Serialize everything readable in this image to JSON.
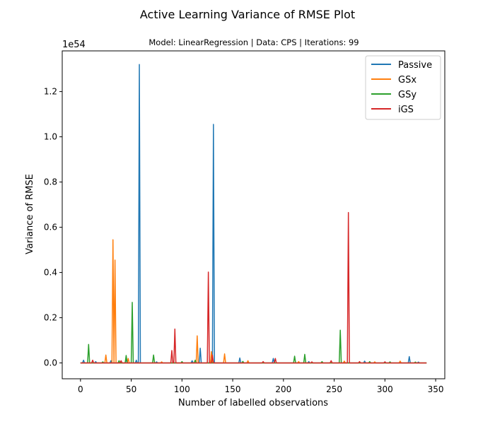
{
  "chart_data": {
    "type": "line",
    "title": "Active Learning Variance of RMSE Plot",
    "subtitle": "Model: LinearRegression |   Data: CPS    |   Iterations: 99",
    "xlabel": "Number of labelled observations",
    "ylabel": "Variance of RMSE",
    "y_exponent_label": "1e54",
    "xlim": [
      -18,
      359
    ],
    "ylim": [
      -0.07,
      1.38
    ],
    "x_ticks": [
      0,
      50,
      100,
      150,
      200,
      250,
      300,
      350
    ],
    "y_ticks": [
      0.0,
      0.2,
      0.4,
      0.6,
      0.8,
      1.0,
      1.2
    ],
    "y_tick_labels": [
      "0.0",
      "0.2",
      "0.4",
      "0.6",
      "0.8",
      "1.0",
      "1.2"
    ],
    "legend_position": "top-right",
    "grid": false,
    "x_range": [
      0,
      341
    ],
    "series": [
      {
        "name": "Passive",
        "color": "#1f77b4",
        "peaks": [
          [
            3,
            0.012
          ],
          [
            15,
            0.006
          ],
          [
            30,
            0.01
          ],
          [
            45,
            0.016
          ],
          [
            55,
            0.012
          ],
          [
            58,
            1.32
          ],
          [
            75,
            0.005
          ],
          [
            110,
            0.01
          ],
          [
            118,
            0.065
          ],
          [
            131,
            1.055
          ],
          [
            157,
            0.022
          ],
          [
            190,
            0.02
          ],
          [
            225,
            0.006
          ],
          [
            280,
            0.008
          ],
          [
            300,
            0.005
          ],
          [
            324,
            0.028
          ],
          [
            333,
            0.004
          ]
        ]
      },
      {
        "name": "GSx",
        "color": "#ff7f0e",
        "peaks": [
          [
            25,
            0.035
          ],
          [
            32,
            0.545
          ],
          [
            34,
            0.455
          ],
          [
            47,
            0.02
          ],
          [
            80,
            0.005
          ],
          [
            115,
            0.12
          ],
          [
            129,
            0.05
          ],
          [
            142,
            0.04
          ],
          [
            165,
            0.01
          ],
          [
            215,
            0.006
          ],
          [
            260,
            0.008
          ],
          [
            290,
            0.005
          ],
          [
            315,
            0.008
          ]
        ]
      },
      {
        "name": "GSy",
        "color": "#2ca02c",
        "peaks": [
          [
            8,
            0.082
          ],
          [
            22,
            0.005
          ],
          [
            38,
            0.01
          ],
          [
            45,
            0.033
          ],
          [
            51,
            0.268
          ],
          [
            72,
            0.035
          ],
          [
            100,
            0.006
          ],
          [
            113,
            0.012
          ],
          [
            160,
            0.007
          ],
          [
            211,
            0.03
          ],
          [
            221,
            0.038
          ],
          [
            238,
            0.006
          ],
          [
            256,
            0.145
          ],
          [
            285,
            0.006
          ],
          [
            305,
            0.005
          ],
          [
            330,
            0.004
          ]
        ]
      },
      {
        "name": "iGS",
        "color": "#d62728",
        "peaks": [
          [
            12,
            0.012
          ],
          [
            40,
            0.01
          ],
          [
            90,
            0.055
          ],
          [
            93,
            0.15
          ],
          [
            126,
            0.402
          ],
          [
            130,
            0.035
          ],
          [
            180,
            0.006
          ],
          [
            192,
            0.02
          ],
          [
            228,
            0.005
          ],
          [
            247,
            0.01
          ],
          [
            264,
            0.665
          ],
          [
            275,
            0.006
          ],
          [
            300,
            0.005
          ]
        ]
      }
    ]
  }
}
